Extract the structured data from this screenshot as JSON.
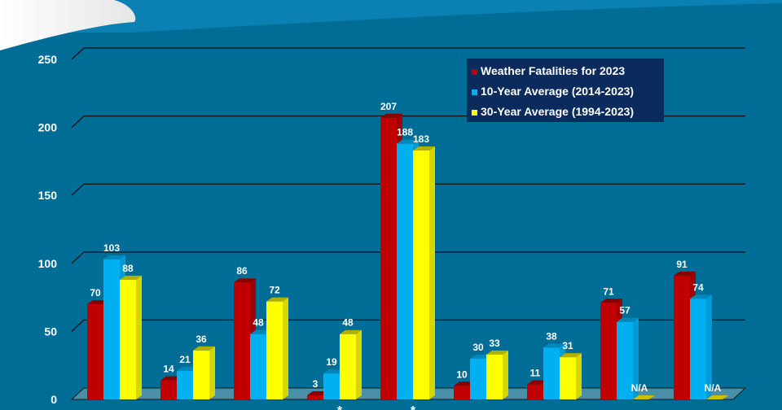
{
  "chart_data": {
    "type": "bar",
    "title": "",
    "xlabel": "",
    "ylabel": "",
    "ylim": [
      0,
      250
    ],
    "yticks": [
      0,
      50,
      100,
      150,
      200,
      250
    ],
    "grid": true,
    "legend_position": "top-right",
    "categories": [
      "",
      "",
      "",
      "",
      "",
      "",
      "",
      "",
      ""
    ],
    "category_marks": [
      "",
      "",
      "",
      "*",
      "*",
      "",
      "",
      "",
      ""
    ],
    "series": [
      {
        "name": "Weather Fatalities for 2023",
        "color": "#c00000",
        "values": [
          70,
          14,
          86,
          3,
          207,
          10,
          11,
          71,
          91
        ]
      },
      {
        "name": "10-Year Average (2014-2023)",
        "color": "#00b0f0",
        "values": [
          103,
          21,
          48,
          19,
          188,
          30,
          38,
          57,
          74
        ]
      },
      {
        "name": "30-Year Average (1994-2023)",
        "color": "#ffff00",
        "values": [
          88,
          36,
          72,
          48,
          183,
          33,
          31,
          null,
          null
        ]
      }
    ],
    "missing_label": "N/A"
  }
}
